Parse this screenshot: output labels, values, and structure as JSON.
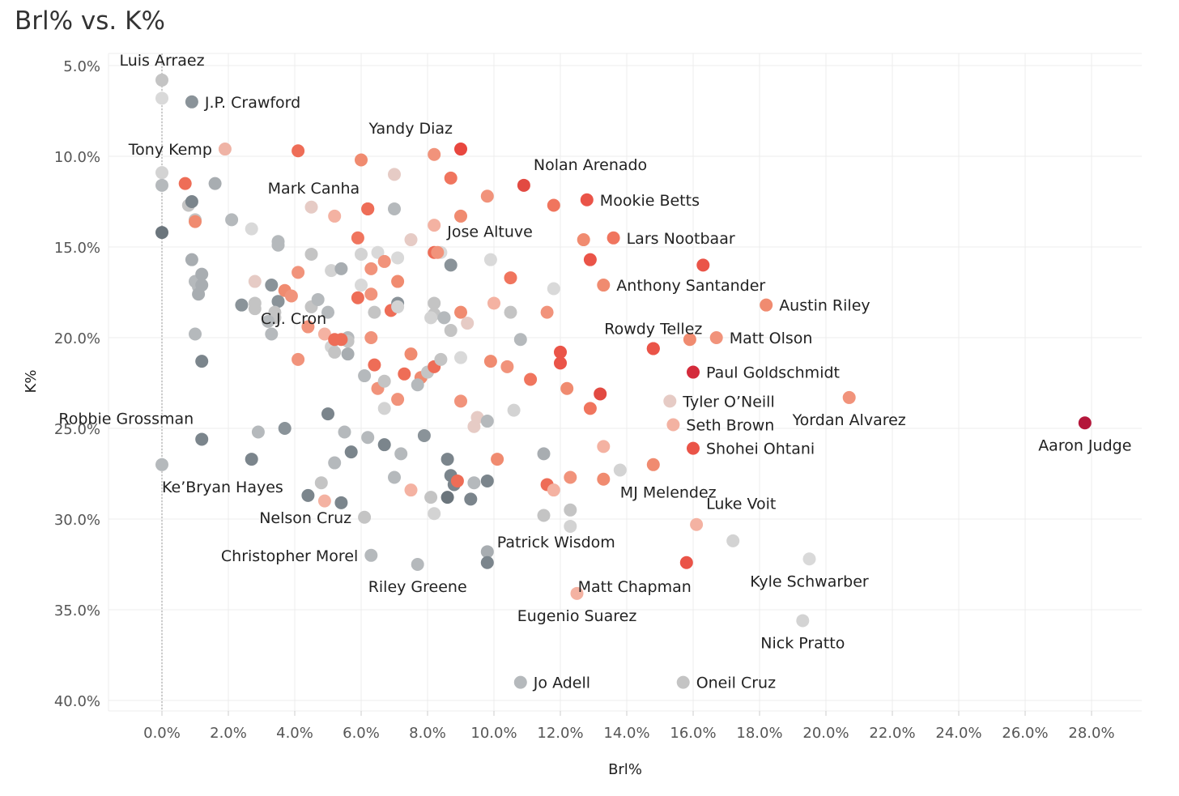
{
  "chart_data": {
    "type": "scatter",
    "title": "Brl% vs. K%",
    "xlabel": "Brl%",
    "ylabel": "K%",
    "xlim": [
      -1.6,
      29.0
    ],
    "ylim": [
      40.0,
      5.0
    ],
    "y_reversed": true,
    "grid": true,
    "x_ticks": [
      0,
      2,
      4,
      6,
      8,
      10,
      12,
      14,
      16,
      18,
      20,
      22,
      24,
      26,
      28
    ],
    "y_ticks": [
      5,
      10,
      15,
      20,
      25,
      30,
      35,
      40
    ],
    "x_tick_labels": [
      "0.0%",
      "2.0%",
      "4.0%",
      "6.0%",
      "8.0%",
      "10.0%",
      "12.0%",
      "14.0%",
      "16.0%",
      "18.0%",
      "20.0%",
      "22.0%",
      "24.0%",
      "26.0%",
      "28.0%"
    ],
    "y_tick_labels": [
      "5.0%",
      "10.0%",
      "15.0%",
      "20.0%",
      "25.0%",
      "30.0%",
      "35.0%",
      "40.0%"
    ],
    "reference_line_x": 0,
    "labeled_points": [
      {
        "name": "Luis Arraez",
        "x": 0.0,
        "y": 5.8,
        "color": "#c4c4c4",
        "label_pos": "above"
      },
      {
        "name": "J.P. Crawford",
        "x": 0.9,
        "y": 7.0,
        "color": "#8a9399",
        "label_pos": "right"
      },
      {
        "name": "Tony Kemp",
        "x": 1.9,
        "y": 9.6,
        "color": "#efb3a5",
        "label_pos": "left"
      },
      {
        "name": "Yandy Diaz",
        "x": 9.0,
        "y": 9.6,
        "color": "#e8473f",
        "label_pos": "above-left"
      },
      {
        "name": "Nolan Arenado",
        "x": 10.9,
        "y": 11.6,
        "color": "#e24a42",
        "label_pos": "above-right"
      },
      {
        "name": "Mark Canha",
        "x": 6.2,
        "y": 12.9,
        "color": "#ee6d57",
        "label_pos": "above-left"
      },
      {
        "name": "Mookie Betts",
        "x": 12.8,
        "y": 12.4,
        "color": "#ea5448",
        "label_pos": "right"
      },
      {
        "name": "Jose Altuve",
        "x": 8.3,
        "y": 15.3,
        "color": "#f1937b",
        "label_pos": "above-right"
      },
      {
        "name": "Lars Nootbaar",
        "x": 13.6,
        "y": 14.5,
        "color": "#f0755e",
        "label_pos": "right"
      },
      {
        "name": "Anthony Santander",
        "x": 13.3,
        "y": 17.1,
        "color": "#f08b70",
        "label_pos": "right"
      },
      {
        "name": "Austin Riley",
        "x": 18.2,
        "y": 18.2,
        "color": "#f08b70",
        "label_pos": "right"
      },
      {
        "name": "Rowdy Tellez",
        "x": 14.8,
        "y": 20.6,
        "color": "#ea5448",
        "label_pos": "above"
      },
      {
        "name": "Matt Olson",
        "x": 16.7,
        "y": 20.0,
        "color": "#f1937b",
        "label_pos": "right"
      },
      {
        "name": "Paul Goldschmidt",
        "x": 16.0,
        "y": 21.9,
        "color": "#d42b3b",
        "label_pos": "right"
      },
      {
        "name": "C.J. Cron",
        "x": 5.2,
        "y": 20.1,
        "color": "#ee6d57",
        "label_pos": "above-left"
      },
      {
        "name": "Tyler O’Neill",
        "x": 15.3,
        "y": 23.5,
        "color": "#e6cbc5",
        "label_pos": "right"
      },
      {
        "name": "Seth Brown",
        "x": 15.4,
        "y": 24.8,
        "color": "#f3b2a2",
        "label_pos": "right"
      },
      {
        "name": "Yordan Alvarez",
        "x": 20.7,
        "y": 23.3,
        "color": "#f1937b",
        "label_pos": "below"
      },
      {
        "name": "Robbie Grossman",
        "x": 1.2,
        "y": 25.6,
        "color": "#7b858c",
        "label_pos": "above-left"
      },
      {
        "name": "Aaron Judge",
        "x": 27.8,
        "y": 24.7,
        "color": "#b4163a",
        "label_pos": "below"
      },
      {
        "name": "Shohei Ohtani",
        "x": 16.0,
        "y": 26.1,
        "color": "#ea5448",
        "label_pos": "right"
      },
      {
        "name": "Ke’Bryan Hayes",
        "x": 0.0,
        "y": 27.0,
        "color": "#b5b9bc",
        "label_pos": "below-right"
      },
      {
        "name": "MJ Melendez",
        "x": 13.8,
        "y": 27.3,
        "color": "#d3d3d3",
        "label_pos": "below-right"
      },
      {
        "name": "Nelson Cruz",
        "x": 6.1,
        "y": 29.9,
        "color": "#c4c4c4",
        "label_pos": "left"
      },
      {
        "name": "Luke Voit",
        "x": 16.1,
        "y": 30.3,
        "color": "#f4b2a2",
        "label_pos": "above-right"
      },
      {
        "name": "Patrick Wisdom",
        "x": 9.8,
        "y": 32.4,
        "color": "#7b858c",
        "label_pos": "above-right"
      },
      {
        "name": "Christopher Morel",
        "x": 6.3,
        "y": 32.0,
        "color": "#b5b9bc",
        "label_pos": "left"
      },
      {
        "name": "Riley Greene",
        "x": 7.7,
        "y": 32.5,
        "color": "#b5b9bc",
        "label_pos": "below"
      },
      {
        "name": "Matt Chapman",
        "x": 15.8,
        "y": 32.4,
        "color": "#ea5448",
        "label_pos": "below-left"
      },
      {
        "name": "Kyle Schwarber",
        "x": 19.5,
        "y": 32.2,
        "color": "#d9d9d9",
        "label_pos": "below"
      },
      {
        "name": "Eugenio Suarez",
        "x": 12.5,
        "y": 34.1,
        "color": "#f4b2a2",
        "label_pos": "below"
      },
      {
        "name": "Nick Pratto",
        "x": 19.3,
        "y": 35.6,
        "color": "#d3d3d3",
        "label_pos": "below"
      },
      {
        "name": "Jo Adell",
        "x": 10.8,
        "y": 39.0,
        "color": "#b5b9bc",
        "label_pos": "right"
      },
      {
        "name": "Oneil Cruz",
        "x": 15.7,
        "y": 39.0,
        "color": "#c4c4c4",
        "label_pos": "right"
      }
    ],
    "unlabeled_points": [
      [
        0.0,
        6.8,
        "#d9d9d9"
      ],
      [
        0.0,
        10.9,
        "#d3d3d3"
      ],
      [
        0.0,
        11.6,
        "#b5b9bc"
      ],
      [
        0.0,
        14.2,
        "#6b757c"
      ],
      [
        0.8,
        12.7,
        "#c4c4c4"
      ],
      [
        0.9,
        12.5,
        "#7b858c"
      ],
      [
        0.7,
        11.5,
        "#ee6d57"
      ],
      [
        1.0,
        13.5,
        "#c4c4c4"
      ],
      [
        1.0,
        13.6,
        "#f08b70"
      ],
      [
        1.6,
        11.5,
        "#a8adb1"
      ],
      [
        2.1,
        13.5,
        "#b5b9bc"
      ],
      [
        2.7,
        14.0,
        "#d9d9d9"
      ],
      [
        0.9,
        15.7,
        "#a8adb1"
      ],
      [
        1.0,
        16.9,
        "#b5b9bc"
      ],
      [
        1.2,
        16.5,
        "#a8adb1"
      ],
      [
        1.1,
        17.2,
        "#b5b9bc"
      ],
      [
        1.2,
        17.1,
        "#a8adb1"
      ],
      [
        1.1,
        17.6,
        "#a8adb1"
      ],
      [
        1.0,
        19.8,
        "#b5b9bc"
      ],
      [
        1.2,
        21.3,
        "#7b858c"
      ],
      [
        2.4,
        18.2,
        "#8a9399"
      ],
      [
        2.8,
        16.9,
        "#e6cbc5"
      ],
      [
        2.8,
        18.1,
        "#c4c4c4"
      ],
      [
        2.8,
        18.4,
        "#c4c4c4"
      ],
      [
        3.3,
        17.1,
        "#8a9399"
      ],
      [
        3.5,
        18.0,
        "#8a9399"
      ],
      [
        3.4,
        18.6,
        "#c4c4c4"
      ],
      [
        3.4,
        18.9,
        "#c4c4c4"
      ],
      [
        3.2,
        19.1,
        "#b5b9bc"
      ],
      [
        3.3,
        19.8,
        "#b5b9bc"
      ],
      [
        3.5,
        14.7,
        "#b5b9bc"
      ],
      [
        3.5,
        14.9,
        "#b5b9bc"
      ],
      [
        3.7,
        17.4,
        "#f08b70"
      ],
      [
        3.9,
        17.7,
        "#f1937b"
      ],
      [
        4.1,
        16.4,
        "#f1937b"
      ],
      [
        4.5,
        15.4,
        "#c4c4c4"
      ],
      [
        4.5,
        18.3,
        "#c4c4c4"
      ],
      [
        4.7,
        17.9,
        "#b5b9bc"
      ],
      [
        4.4,
        19.4,
        "#f1937b"
      ],
      [
        4.9,
        19.8,
        "#f4b2a2"
      ],
      [
        5.0,
        18.6,
        "#b5b9bc"
      ],
      [
        5.1,
        16.3,
        "#d3d3d3"
      ],
      [
        5.4,
        16.2,
        "#a8adb1"
      ],
      [
        5.1,
        20.5,
        "#d3d3d3"
      ],
      [
        5.2,
        20.8,
        "#c4c4c4"
      ],
      [
        5.6,
        20.0,
        "#b5b9bc"
      ],
      [
        5.6,
        20.2,
        "#c4c4c4"
      ],
      [
        5.6,
        20.9,
        "#a8adb1"
      ],
      [
        5.4,
        20.1,
        "#ee6d57"
      ],
      [
        4.1,
        21.2,
        "#f1937b"
      ],
      [
        4.5,
        12.8,
        "#e6cbc5"
      ],
      [
        4.1,
        9.7,
        "#ee6d57"
      ],
      [
        5.2,
        13.3,
        "#f4b2a2"
      ],
      [
        6.0,
        10.2,
        "#f08b70"
      ],
      [
        6.2,
        12.9,
        "#ee6d57"
      ],
      [
        5.9,
        14.5,
        "#f0755e"
      ],
      [
        6.0,
        15.4,
        "#d3d3d3"
      ],
      [
        6.0,
        17.1,
        "#d9d9d9"
      ],
      [
        6.3,
        16.2,
        "#f1937b"
      ],
      [
        6.5,
        15.3,
        "#d9d9d9"
      ],
      [
        6.7,
        15.8,
        "#f1937b"
      ],
      [
        6.3,
        17.6,
        "#f1937b"
      ],
      [
        5.9,
        17.8,
        "#ee6d57"
      ],
      [
        6.4,
        18.6,
        "#c4c4c4"
      ],
      [
        6.9,
        18.5,
        "#ee6d57"
      ],
      [
        6.3,
        20.0,
        "#f1937b"
      ],
      [
        7.0,
        12.9,
        "#b5b9bc"
      ],
      [
        7.0,
        11.0,
        "#e6cbc5"
      ],
      [
        7.1,
        15.6,
        "#d9d9d9"
      ],
      [
        7.1,
        16.9,
        "#f08b70"
      ],
      [
        7.1,
        18.1,
        "#8a9399"
      ],
      [
        7.1,
        18.3,
        "#d3d3d3"
      ],
      [
        6.1,
        22.1,
        "#b5b9bc"
      ],
      [
        6.4,
        21.5,
        "#ee6d57"
      ],
      [
        6.5,
        22.8,
        "#f1937b"
      ],
      [
        6.7,
        22.4,
        "#c4c4c4"
      ],
      [
        6.7,
        23.9,
        "#d3d3d3"
      ],
      [
        7.1,
        23.4,
        "#f1937b"
      ],
      [
        7.5,
        14.6,
        "#e6cbc5"
      ],
      [
        7.5,
        20.9,
        "#f08b70"
      ],
      [
        7.3,
        22.0,
        "#ee6d57"
      ],
      [
        7.8,
        22.2,
        "#f08b70"
      ],
      [
        7.7,
        22.6,
        "#b5b9bc"
      ],
      [
        8.0,
        21.9,
        "#c4c4c4"
      ],
      [
        8.2,
        21.6,
        "#ee6d57"
      ],
      [
        8.4,
        21.2,
        "#c4c4c4"
      ],
      [
        8.2,
        9.9,
        "#f1937b"
      ],
      [
        8.7,
        11.2,
        "#f0755e"
      ],
      [
        8.2,
        13.8,
        "#f4b2a2"
      ],
      [
        8.2,
        15.3,
        "#ee6d57"
      ],
      [
        8.4,
        15.3,
        "#d9d9d9"
      ],
      [
        8.7,
        16.0,
        "#8a9399"
      ],
      [
        8.2,
        18.1,
        "#c4c4c4"
      ],
      [
        8.2,
        18.7,
        "#c4c4c4"
      ],
      [
        8.1,
        18.9,
        "#d3d3d3"
      ],
      [
        8.5,
        18.9,
        "#b5b9bc"
      ],
      [
        8.7,
        19.6,
        "#c4c4c4"
      ],
      [
        9.0,
        13.3,
        "#f08b70"
      ],
      [
        9.0,
        18.6,
        "#f08b70"
      ],
      [
        9.2,
        19.2,
        "#e6cbc5"
      ],
      [
        9.0,
        21.1,
        "#d9d9d9"
      ],
      [
        9.0,
        23.5,
        "#f1937b"
      ],
      [
        9.5,
        24.4,
        "#e6cbc5"
      ],
      [
        9.4,
        24.9,
        "#e6cbc5"
      ],
      [
        9.8,
        24.6,
        "#b5b9bc"
      ],
      [
        9.8,
        12.2,
        "#f1937b"
      ],
      [
        9.9,
        15.7,
        "#d9d9d9"
      ],
      [
        10.0,
        18.1,
        "#f4b2a2"
      ],
      [
        9.9,
        21.3,
        "#f08b70"
      ],
      [
        10.4,
        21.6,
        "#f1937b"
      ],
      [
        10.5,
        16.7,
        "#f0755e"
      ],
      [
        10.5,
        18.6,
        "#c4c4c4"
      ],
      [
        10.8,
        20.1,
        "#b5b9bc"
      ],
      [
        10.6,
        24.0,
        "#d3d3d3"
      ],
      [
        11.1,
        22.3,
        "#f0755e"
      ],
      [
        11.8,
        17.3,
        "#d9d9d9"
      ],
      [
        11.6,
        18.6,
        "#f1937b"
      ],
      [
        11.8,
        12.7,
        "#f0755e"
      ],
      [
        12.0,
        20.8,
        "#ea5448"
      ],
      [
        12.0,
        21.4,
        "#ea5448"
      ],
      [
        12.2,
        22.8,
        "#f08b70"
      ],
      [
        12.7,
        14.6,
        "#f08b70"
      ],
      [
        12.9,
        15.7,
        "#ea5448"
      ],
      [
        13.2,
        23.1,
        "#e24a42"
      ],
      [
        12.9,
        23.9,
        "#f0755e"
      ],
      [
        13.3,
        26.0,
        "#f4b2a2"
      ],
      [
        12.3,
        27.7,
        "#f1937b"
      ],
      [
        11.6,
        28.1,
        "#ee6d57"
      ],
      [
        11.8,
        28.4,
        "#f4b2a2"
      ],
      [
        11.5,
        26.4,
        "#a8adb1"
      ],
      [
        12.3,
        29.5,
        "#c4c4c4"
      ],
      [
        12.3,
        30.4,
        "#d3d3d3"
      ],
      [
        11.5,
        29.8,
        "#c4c4c4"
      ],
      [
        13.3,
        27.8,
        "#f08b70"
      ],
      [
        14.8,
        27.0,
        "#f08b70"
      ],
      [
        14.8,
        20.6,
        "#ea5448"
      ],
      [
        15.9,
        20.1,
        "#f08b70"
      ],
      [
        16.3,
        16.0,
        "#ea5448"
      ],
      [
        5.5,
        25.2,
        "#b5b9bc"
      ],
      [
        5.2,
        26.9,
        "#b5b9bc"
      ],
      [
        5.7,
        26.3,
        "#7b858c"
      ],
      [
        6.2,
        25.5,
        "#b5b9bc"
      ],
      [
        6.7,
        25.9,
        "#7b858c"
      ],
      [
        7.2,
        26.4,
        "#b5b9bc"
      ],
      [
        7.9,
        25.4,
        "#8a9399"
      ],
      [
        8.6,
        26.7,
        "#7b858c"
      ],
      [
        8.7,
        27.6,
        "#7b858c"
      ],
      [
        8.8,
        28.1,
        "#7b858c"
      ],
      [
        9.4,
        28.0,
        "#b5b9bc"
      ],
      [
        9.8,
        27.9,
        "#7b858c"
      ],
      [
        8.9,
        27.9,
        "#ee6d57"
      ],
      [
        10.1,
        26.7,
        "#f08b70"
      ],
      [
        7.0,
        27.7,
        "#b5b9bc"
      ],
      [
        7.5,
        28.4,
        "#f4b2a2"
      ],
      [
        8.1,
        28.8,
        "#c4c4c4"
      ],
      [
        8.6,
        28.8,
        "#6b757c"
      ],
      [
        9.3,
        28.9,
        "#7b858c"
      ],
      [
        8.2,
        29.7,
        "#d3d3d3"
      ],
      [
        5.0,
        24.2,
        "#7b858c"
      ],
      [
        3.7,
        25.0,
        "#8a9399"
      ],
      [
        2.9,
        25.2,
        "#b5b9bc"
      ],
      [
        2.7,
        26.7,
        "#7b858c"
      ],
      [
        4.8,
        28.0,
        "#c4c4c4"
      ],
      [
        4.4,
        28.7,
        "#7b858c"
      ],
      [
        4.9,
        29.0,
        "#f4b2a2"
      ],
      [
        5.4,
        29.1,
        "#7b858c"
      ],
      [
        9.8,
        31.8,
        "#a8adb1"
      ],
      [
        17.2,
        31.2,
        "#d3d3d3"
      ]
    ]
  }
}
